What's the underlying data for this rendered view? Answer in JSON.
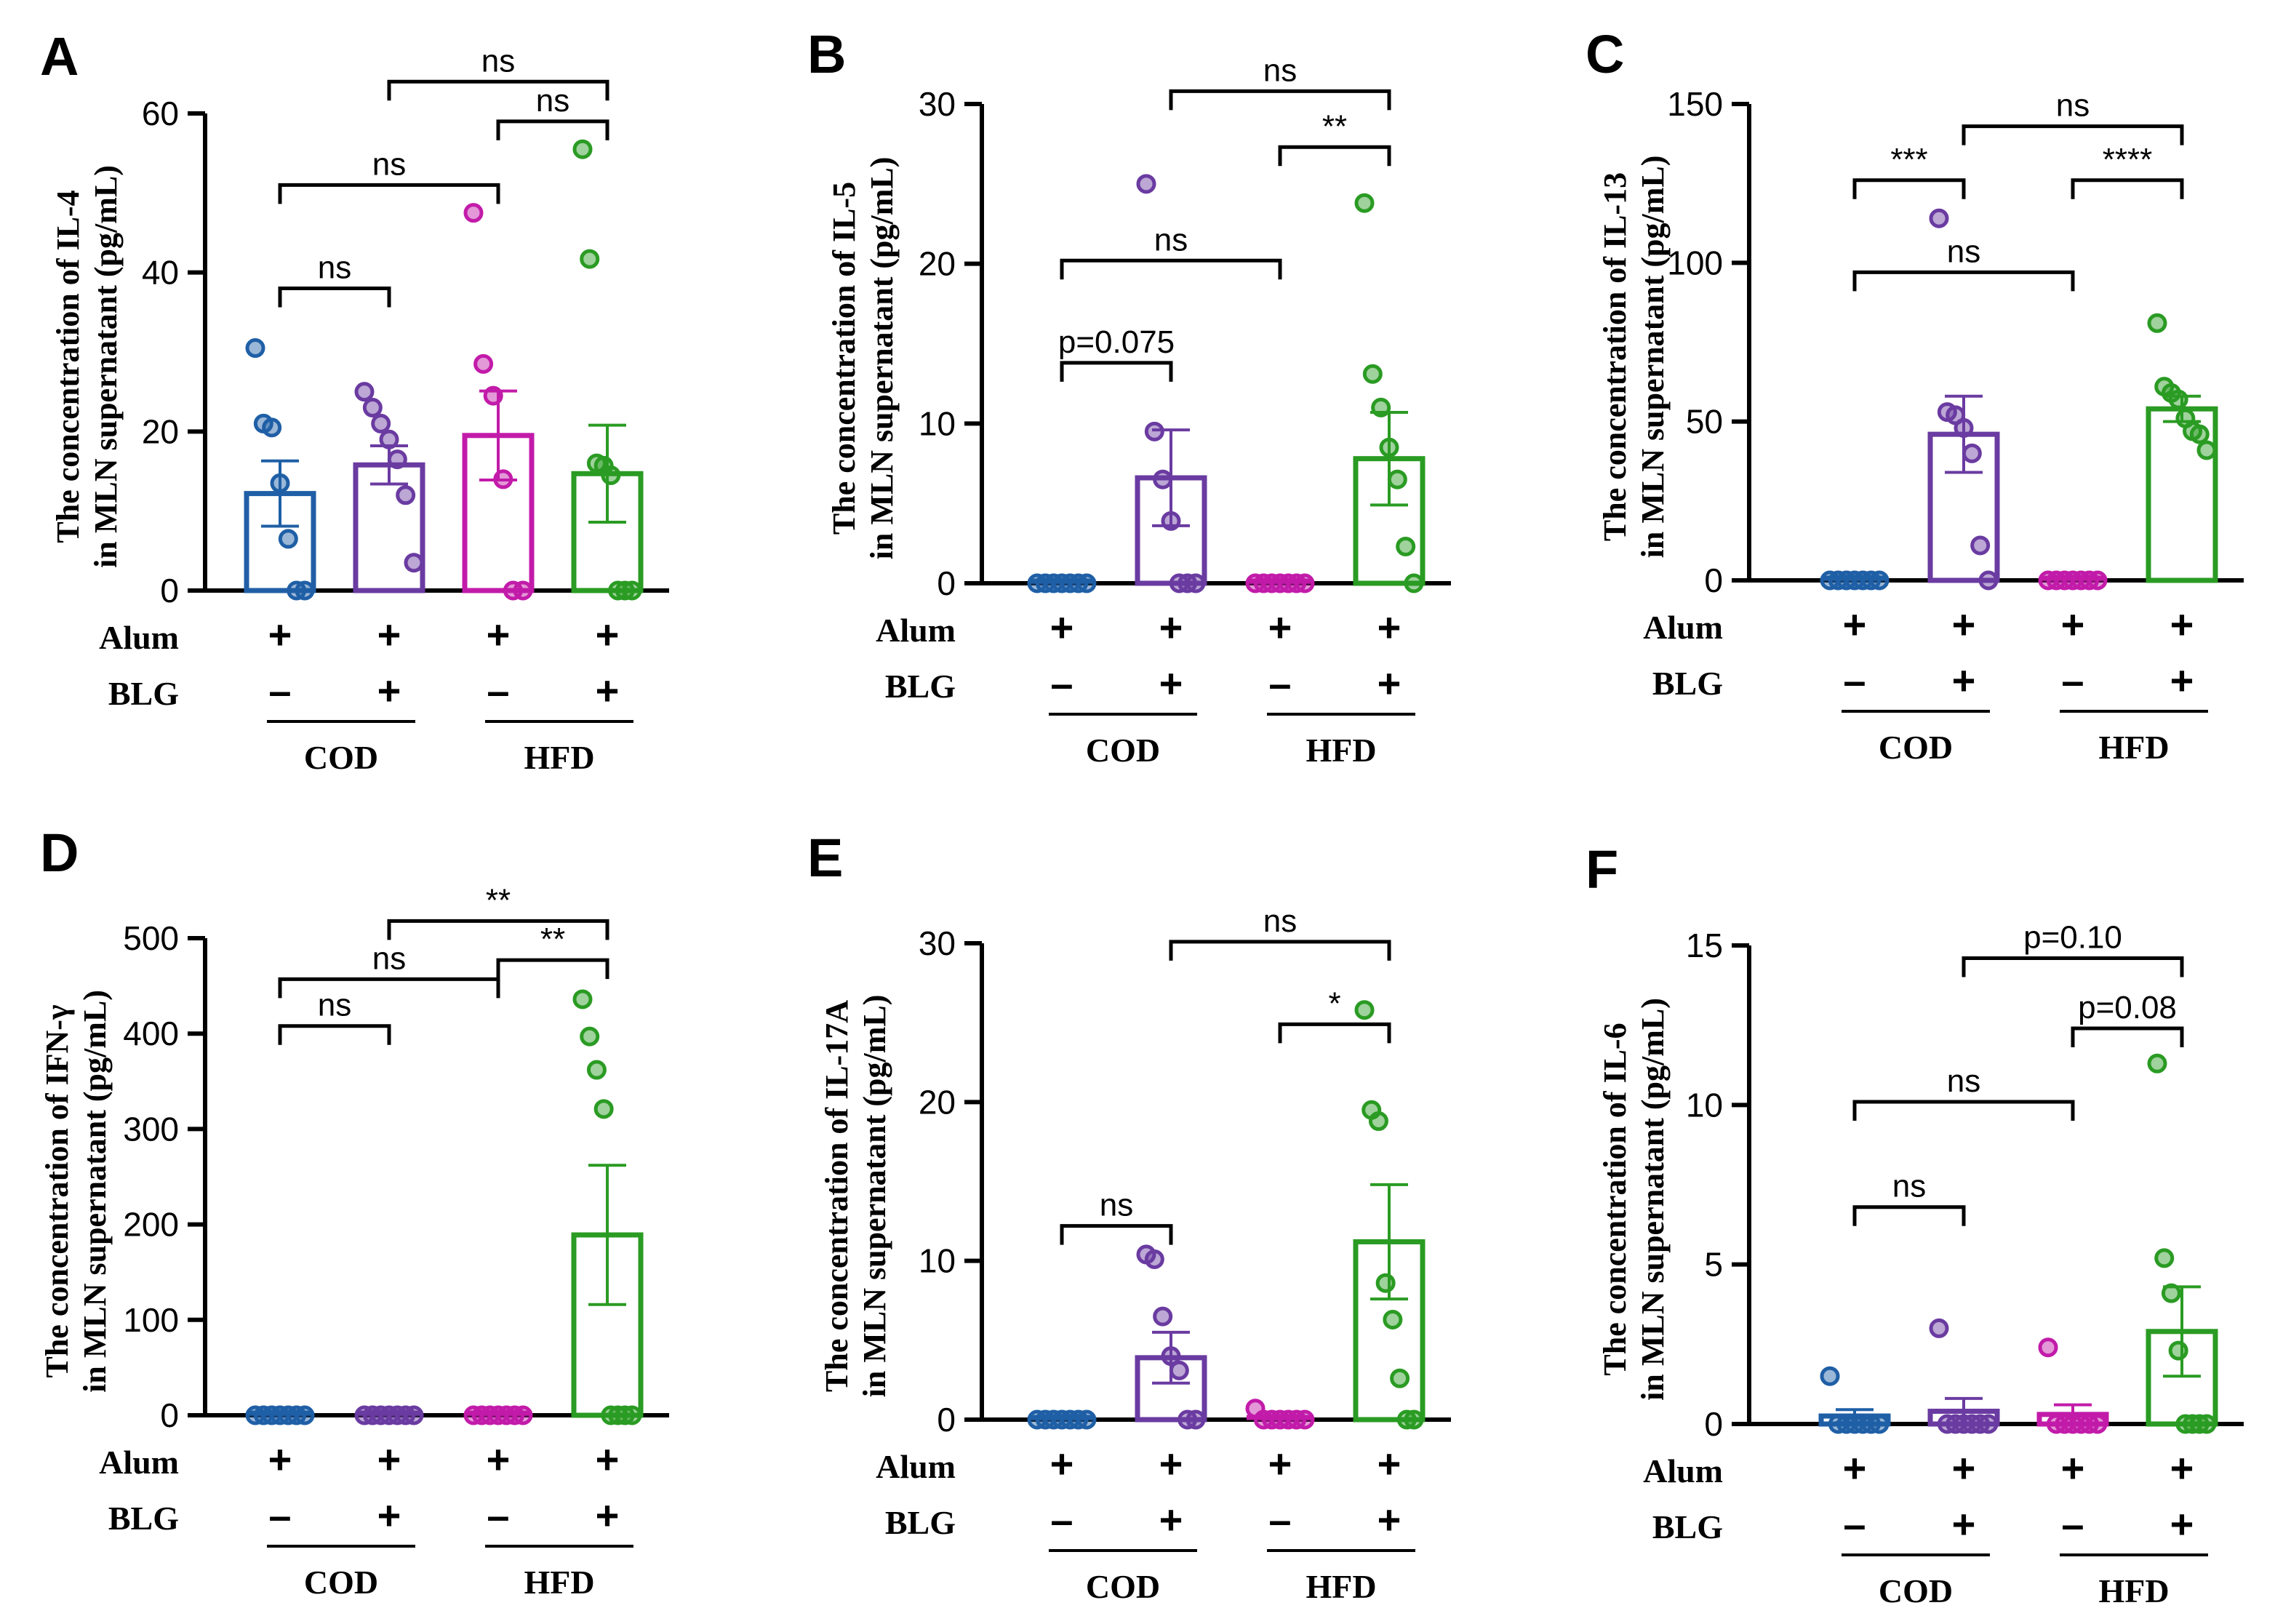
{
  "colors": {
    "COD-": "#1f5fa6",
    "COD+": "#6a3ba1",
    "HFD-": "#c21ba9",
    "HFD+": "#2a9b23",
    "axis": "#000000"
  },
  "row_labels": {
    "alum": "Alum",
    "blg": "BLG"
  },
  "conditions": {
    "alum": [
      "+",
      "+",
      "+",
      "+"
    ],
    "blg": [
      "–",
      "+",
      "–",
      "+"
    ]
  },
  "diet_groups": [
    "COD",
    "HFD"
  ],
  "chart_data": [
    {
      "type": "bar",
      "panel": "A",
      "ylabel_line1": "The concentration of IL-4",
      "ylabel_line2": "in MLN supernatant (pg/mL)",
      "ylim": [
        0,
        60
      ],
      "yticks": [
        0,
        20,
        40,
        60
      ],
      "categories": [
        "COD Alum+ BLG−",
        "COD Alum+ BLG+",
        "HFD Alum+ BLG−",
        "HFD Alum+ BLG+"
      ],
      "means": [
        12.2,
        15.8,
        19.5,
        14.7
      ],
      "sem": [
        4.1,
        2.4,
        5.6,
        6.1
      ],
      "points": [
        [
          30.5,
          21,
          20.5,
          13.5,
          6.5,
          0,
          0
        ],
        [
          25,
          23,
          21,
          19,
          16.5,
          12,
          3.5
        ],
        [
          47.5,
          28.5,
          24.5,
          14,
          0,
          0
        ],
        [
          55.5,
          41.7,
          16,
          15.7,
          14.5,
          0,
          0,
          0
        ]
      ],
      "brackets": [
        {
          "from": 0,
          "to": 1,
          "y": 38,
          "label": "ns"
        },
        {
          "from": 0,
          "to": 2,
          "y": 51,
          "label": "ns"
        },
        {
          "from": 2,
          "to": 3,
          "y": 59,
          "label": "ns"
        },
        {
          "from": 1,
          "to": 3,
          "y": 64,
          "label": "ns"
        }
      ]
    },
    {
      "type": "bar",
      "panel": "B",
      "ylabel_line1": "The concentration of IL-5",
      "ylabel_line2": "in MLN supernatant (pg/mL)",
      "ylim": [
        0,
        30
      ],
      "yticks": [
        0,
        10,
        20,
        30
      ],
      "categories": [
        "COD Alum+ BLG−",
        "COD Alum+ BLG+",
        "HFD Alum+ BLG−",
        "HFD Alum+ BLG+"
      ],
      "means": [
        0,
        6.6,
        0,
        7.8
      ],
      "sem": [
        0,
        3.0,
        0,
        2.9
      ],
      "points": [
        [
          0,
          0,
          0,
          0,
          0,
          0,
          0
        ],
        [
          25,
          9.5,
          6.5,
          3.9,
          0,
          0,
          0
        ],
        [
          0,
          0,
          0,
          0,
          0,
          0,
          0
        ],
        [
          23.8,
          13.1,
          11,
          8.5,
          6.5,
          2.3,
          0
        ]
      ],
      "brackets": [
        {
          "from": 0,
          "to": 1,
          "y": 13.8,
          "label": "p=0.075"
        },
        {
          "from": 0,
          "to": 2,
          "y": 20.2,
          "label": "ns"
        },
        {
          "from": 2,
          "to": 3,
          "y": 27.3,
          "label": "**"
        },
        {
          "from": 1,
          "to": 3,
          "y": 30.8,
          "label": "ns"
        }
      ]
    },
    {
      "type": "bar",
      "panel": "C",
      "ylabel_line1": "The concentration of IL-13",
      "ylabel_line2": "in MLN supernatant (pg/mL)",
      "ylim": [
        0,
        150
      ],
      "yticks": [
        0,
        50,
        100,
        150
      ],
      "categories": [
        "COD Alum+ BLG−",
        "COD Alum+ BLG+",
        "HFD Alum+ BLG−",
        "HFD Alum+ BLG+"
      ],
      "means": [
        0,
        46,
        0,
        54
      ],
      "sem": [
        0,
        12,
        0,
        4
      ],
      "points": [
        [
          0,
          0,
          0,
          0,
          0,
          0,
          0
        ],
        [
          114,
          53,
          52,
          48,
          40,
          11,
          0
        ],
        [
          0,
          0,
          0,
          0,
          0,
          0,
          0
        ],
        [
          81,
          61,
          59,
          57,
          51,
          47,
          46,
          41
        ]
      ],
      "brackets": [
        {
          "from": 0,
          "to": 1,
          "y": 126,
          "label": "***"
        },
        {
          "from": 0,
          "to": 2,
          "y": 97,
          "label": "ns"
        },
        {
          "from": 2,
          "to": 3,
          "y": 126,
          "label": "****"
        },
        {
          "from": 1,
          "to": 3,
          "y": 143,
          "label": "ns"
        }
      ]
    },
    {
      "type": "bar",
      "panel": "D",
      "ylabel_line1": "The concentration of IFN-γ",
      "ylabel_line2": "in MLN supernatant (pg/mL)",
      "ylim": [
        0,
        500
      ],
      "yticks": [
        0,
        100,
        200,
        300,
        400,
        500
      ],
      "categories": [
        "COD Alum+ BLG−",
        "COD Alum+ BLG+",
        "HFD Alum+ BLG−",
        "HFD Alum+ BLG+"
      ],
      "means": [
        0,
        0,
        0,
        189
      ],
      "sem": [
        0,
        0,
        0,
        73
      ],
      "points": [
        [
          0,
          0,
          0,
          0,
          0,
          0,
          0
        ],
        [
          0,
          0,
          0,
          0,
          0,
          0,
          0
        ],
        [
          0,
          0,
          0,
          0,
          0,
          0,
          0
        ],
        [
          436,
          397,
          362,
          321,
          0,
          0,
          0,
          0
        ]
      ],
      "brackets": [
        {
          "from": 0,
          "to": 1,
          "y": 408,
          "label": "ns"
        },
        {
          "from": 0,
          "to": 2,
          "y": 457,
          "label": "ns"
        },
        {
          "from": 2,
          "to": 3,
          "y": 477,
          "label": "**"
        },
        {
          "from": 1,
          "to": 3,
          "y": 518,
          "label": "**"
        }
      ]
    },
    {
      "type": "bar",
      "panel": "E",
      "ylabel_line1": "The concentration of IL-17A",
      "ylabel_line2": "in MLN supernatant (pg/mL)",
      "ylim": [
        0,
        30
      ],
      "yticks": [
        0,
        10,
        20,
        30
      ],
      "categories": [
        "COD Alum+ BLG−",
        "COD Alum+ BLG+",
        "HFD Alum+ BLG−",
        "HFD Alum+ BLG+"
      ],
      "means": [
        0,
        3.9,
        0.15,
        11.2
      ],
      "sem": [
        0,
        1.6,
        0.1,
        3.6
      ],
      "points": [
        [
          0,
          0,
          0,
          0,
          0,
          0,
          0
        ],
        [
          10.4,
          10.1,
          6.5,
          4,
          3.1,
          0,
          0
        ],
        [
          0.7,
          0,
          0,
          0,
          0,
          0,
          0
        ],
        [
          25.8,
          19.5,
          18.8,
          8.6,
          6.3,
          2.6,
          0,
          0
        ]
      ],
      "brackets": [
        {
          "from": 0,
          "to": 1,
          "y": 12.2,
          "label": "ns"
        },
        {
          "from": 2,
          "to": 3,
          "y": 24.9,
          "label": "*"
        },
        {
          "from": 1,
          "to": 3,
          "y": 30.1,
          "label": "ns"
        }
      ]
    },
    {
      "type": "bar",
      "panel": "F",
      "ylabel_line1": "The concentration of IL-6",
      "ylabel_line2": "in MLN supernatant (pg/mL)",
      "ylim": [
        0,
        15
      ],
      "yticks": [
        0,
        5,
        10,
        15
      ],
      "categories": [
        "COD Alum+ BLG−",
        "COD Alum+ BLG+",
        "HFD Alum+ BLG−",
        "HFD Alum+ BLG+"
      ],
      "means": [
        0.25,
        0.4,
        0.3,
        2.9
      ],
      "sem": [
        0.2,
        0.4,
        0.3,
        1.4
      ],
      "points": [
        [
          1.5,
          0,
          0,
          0,
          0,
          0,
          0
        ],
        [
          3,
          0,
          0,
          0,
          0,
          0,
          0
        ],
        [
          2.4,
          0,
          0,
          0,
          0,
          0,
          0
        ],
        [
          11.3,
          5.2,
          4.1,
          2.3,
          0,
          0,
          0,
          0
        ]
      ],
      "brackets": [
        {
          "from": 0,
          "to": 1,
          "y": 6.8,
          "label": "ns"
        },
        {
          "from": 0,
          "to": 2,
          "y": 10.1,
          "label": "ns"
        },
        {
          "from": 2,
          "to": 3,
          "y": 12.4,
          "label": "p=0.08"
        },
        {
          "from": 1,
          "to": 3,
          "y": 14.6,
          "label": "p=0.10"
        }
      ]
    }
  ]
}
